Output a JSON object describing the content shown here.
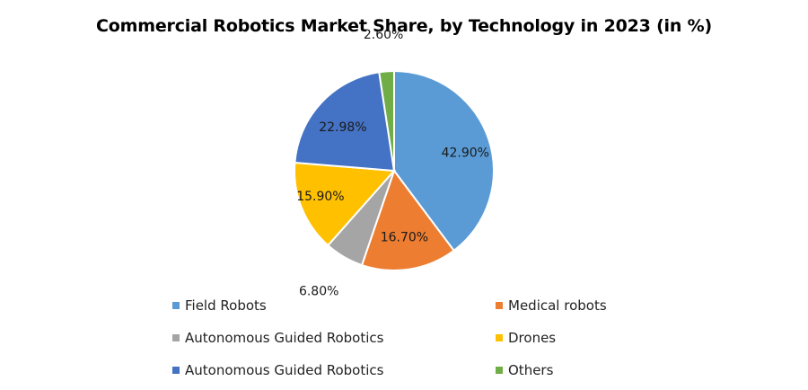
{
  "chart_data": {
    "type": "pie",
    "title": "Commercial Robotics Market Share, by Technology in 2023 (in %)",
    "slices": [
      {
        "name": "Field Robots",
        "value": 42.9,
        "label": "42.90%",
        "color": "#5B9BD5"
      },
      {
        "name": "Medical robots",
        "value": 16.7,
        "label": "16.70%",
        "color": "#ED7D31"
      },
      {
        "name": "Autonomous Guided Robotics",
        "value": 6.8,
        "label": "6.80%",
        "color": "#A5A5A5"
      },
      {
        "name": "Drones",
        "value": 15.9,
        "label": "15.90%",
        "color": "#FFC000"
      },
      {
        "name": "Autonomous Guided Robotics",
        "value": 22.98,
        "label": "22.98%",
        "color": "#4472C4"
      },
      {
        "name": "Others",
        "value": 2.6,
        "label": "2.60%",
        "color": "#70AD47"
      }
    ],
    "legend_position": "bottom"
  }
}
